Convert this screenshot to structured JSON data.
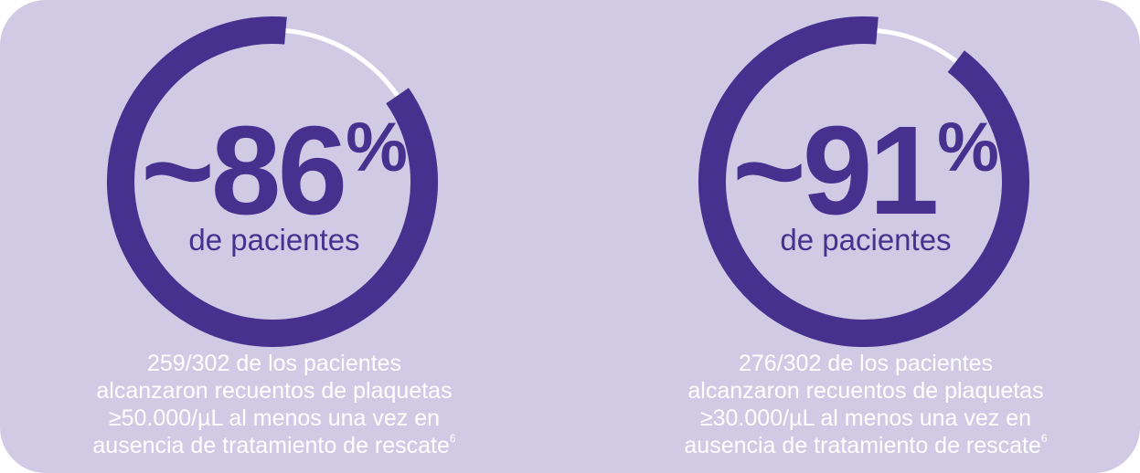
{
  "colors": {
    "panel_bg": "#d0cae5",
    "accent": "#47318f",
    "track": "#ffffff",
    "caption": "#ffffff"
  },
  "stats": [
    {
      "tilde": "~",
      "value": "86",
      "percent_sign": "%",
      "label": "de pacientes",
      "progress_fraction": 0.86,
      "caption_lines": [
        "259/302 de los pacientes",
        "alcanzaron recuentos de plaquetas",
        "≥50.000/µL al menos una vez en",
        "ausencia de tratamiento de rescate"
      ],
      "footnote": "6"
    },
    {
      "tilde": "~",
      "value": "91",
      "percent_sign": "%",
      "label": "de pacientes",
      "progress_fraction": 0.91,
      "caption_lines": [
        "276/302 de los pacientes",
        "alcanzaron recuentos de plaquetas",
        "≥30.000/µL al menos una vez en",
        "ausencia de tratamiento de rescate"
      ],
      "footnote": "6"
    }
  ]
}
